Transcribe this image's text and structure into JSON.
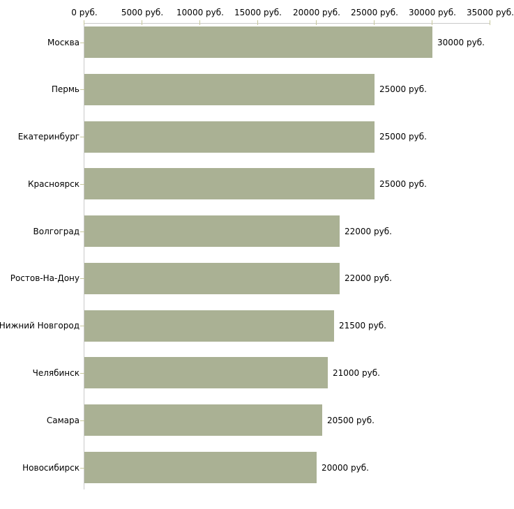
{
  "chart_data": {
    "type": "bar",
    "orientation": "horizontal",
    "title": "",
    "xlabel": "",
    "ylabel": "",
    "xlim": [
      0,
      35000
    ],
    "x_ticks": [
      0,
      5000,
      10000,
      15000,
      20000,
      25000,
      30000,
      35000
    ],
    "x_tick_labels": [
      "0 руб.",
      "5000 руб.",
      "10000 руб.",
      "15000 руб.",
      "20000 руб.",
      "25000 руб.",
      "30000 руб.",
      "35000 руб."
    ],
    "categories": [
      "Москва",
      "Пермь",
      "Екатеринбург",
      "Красноярск",
      "Волгоград",
      "Ростов-На-Дону",
      "Нижний Новгород",
      "Челябинск",
      "Самара",
      "Новосибирск"
    ],
    "values": [
      30000,
      25000,
      25000,
      25000,
      22000,
      22000,
      21500,
      21000,
      20500,
      20000
    ],
    "value_labels": [
      "30000 руб.",
      "25000 руб.",
      "25000 руб.",
      "25000 руб.",
      "22000 руб.",
      "22000 руб.",
      "21500 руб.",
      "21000 руб.",
      "20500 руб.",
      "20000 руб."
    ],
    "unit": "руб.",
    "grid": false,
    "legend_position": "none",
    "colors": {
      "bar": "#aab194",
      "axis": "#c9c9c9",
      "tick": "#c6c79b",
      "text": "#000000",
      "background": "#ffffff"
    }
  }
}
